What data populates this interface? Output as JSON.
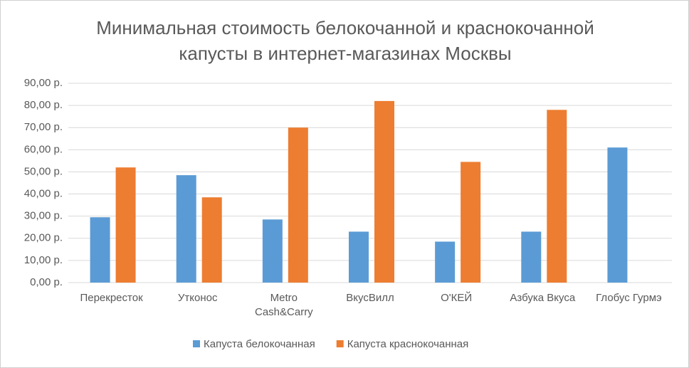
{
  "chart_data": {
    "type": "bar",
    "title": "Минимальная стоимость белокочанной и краснокочанной капусты в интернет-магазинах Москвы",
    "categories": [
      "Перекресток",
      "Утконос",
      "Metro Cash&Carry",
      "ВкусВилл",
      "О'КЕЙ",
      "Азбука Вкуса",
      "Глобус Гурмэ"
    ],
    "series": [
      {
        "name": "Капуста белокочанная",
        "color": "#5b9bd5",
        "values": [
          29.5,
          48.5,
          28.5,
          23,
          18.5,
          23,
          61
        ]
      },
      {
        "name": "Капуста краснокочанная",
        "color": "#ed7d31",
        "values": [
          52,
          38.5,
          70,
          82,
          54.5,
          78,
          null
        ]
      }
    ],
    "ylim": [
      0,
      90
    ],
    "yticks": [
      {
        "value": 0,
        "label": "0,00 р."
      },
      {
        "value": 10,
        "label": "10,00 р."
      },
      {
        "value": 20,
        "label": "20,00 р."
      },
      {
        "value": 30,
        "label": "30,00 р."
      },
      {
        "value": 40,
        "label": "40,00 р."
      },
      {
        "value": 50,
        "label": "50,00 р."
      },
      {
        "value": 60,
        "label": "60,00 р."
      },
      {
        "value": 70,
        "label": "70,00 р."
      },
      {
        "value": 80,
        "label": "80,00 р."
      },
      {
        "value": 90,
        "label": "90,00 р."
      }
    ],
    "grid": true,
    "legend": "bottom"
  }
}
